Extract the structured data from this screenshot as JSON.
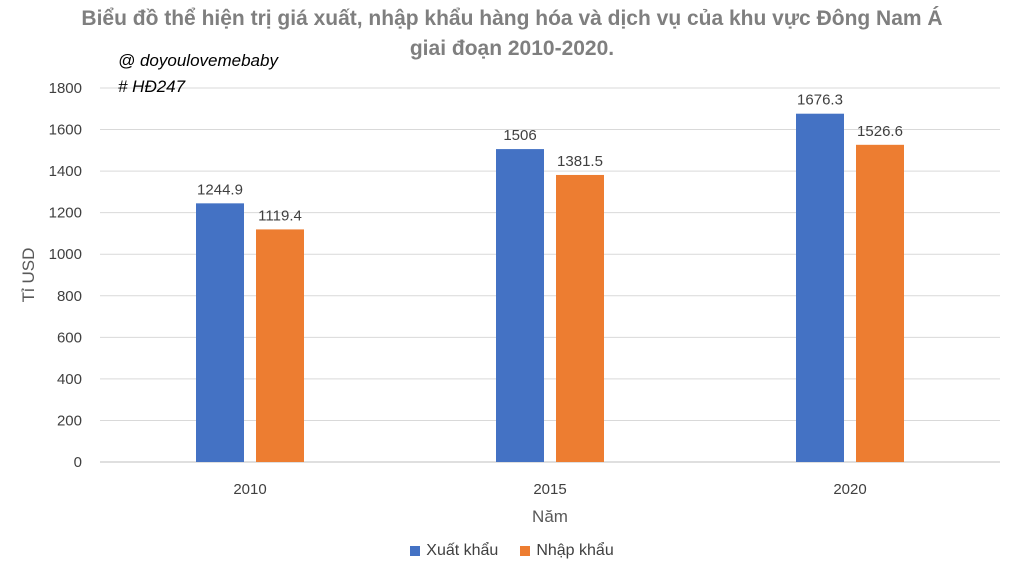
{
  "title_lines": [
    "Biểu đồ thể hiện trị giá xuất, nhập khẩu hàng hóa và dịch vụ của khu vực Đông Nam Á",
    "giai đoạn 2010-2020."
  ],
  "watermark": [
    "@ doyoulovemebaby",
    "# HĐ247"
  ],
  "chart_data": {
    "type": "bar",
    "title": "Biểu đồ thể hiện trị giá xuất, nhập khẩu hàng hóa và dịch vụ của khu vực Đông Nam Á giai đoạn 2010-2020.",
    "categories": [
      "2010",
      "2015",
      "2020"
    ],
    "series": [
      {
        "name": "Xuất khẩu",
        "values": [
          1244.9,
          1506,
          1676.3
        ],
        "labels": [
          "1244.9",
          "1506",
          "1676.3"
        ],
        "color": "#4472c4"
      },
      {
        "name": "Nhập khẩu",
        "values": [
          1119.4,
          1381.5,
          1526.6
        ],
        "labels": [
          "1119.4",
          "1381.5",
          "1526.6"
        ],
        "color": "#ed7d31"
      }
    ],
    "xlabel": "Năm",
    "ylabel": "Tỉ USD",
    "ylim": [
      0,
      1800
    ],
    "yticks": [
      0,
      200,
      400,
      600,
      800,
      1000,
      1200,
      1400,
      1600,
      1800
    ],
    "grid": true,
    "legend_position": "bottom"
  }
}
